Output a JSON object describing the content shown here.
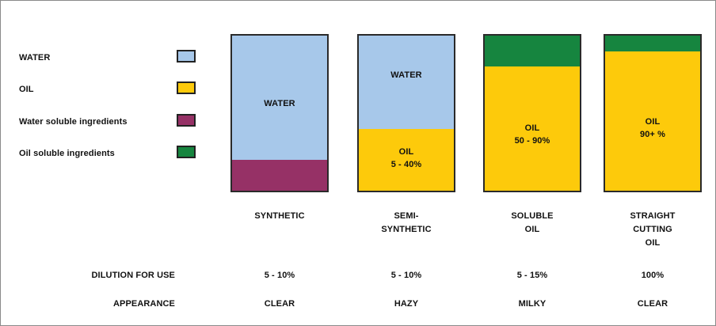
{
  "colors": {
    "water": "#a7c8ea",
    "oil": "#fdca0b",
    "water_soluble": "#963166",
    "oil_soluble": "#16853f"
  },
  "legend": [
    {
      "label": "WATER",
      "color_key": "water"
    },
    {
      "label": "OIL",
      "color_key": "oil"
    },
    {
      "label": "Water soluble ingredients",
      "color_key": "water_soluble"
    },
    {
      "label": "Oil soluble ingredients",
      "color_key": "oil_soluble"
    }
  ],
  "columns": [
    {
      "name_lines": [
        "SYNTHETIC"
      ],
      "dilution": "5 - 10%",
      "appearance": "CLEAR",
      "segments": [
        {
          "color_key": "water",
          "fraction": 0.8,
          "label": "WATER",
          "sublabel": ""
        },
        {
          "color_key": "water_soluble",
          "fraction": 0.2,
          "label": "",
          "sublabel": ""
        }
      ]
    },
    {
      "name_lines": [
        "SEMI-",
        "SYNTHETIC"
      ],
      "dilution": "5 - 10%",
      "appearance": "HAZY",
      "segments": [
        {
          "color_key": "water",
          "fraction": 0.6,
          "label": "WATER",
          "sublabel": ""
        },
        {
          "color_key": "oil",
          "fraction": 0.4,
          "label": "OIL",
          "sublabel": "5 - 40%"
        }
      ]
    },
    {
      "name_lines": [
        "SOLUBLE",
        "OIL"
      ],
      "dilution": "5 - 15%",
      "appearance": "MILKY",
      "segments": [
        {
          "color_key": "oil_soluble",
          "fraction": 0.2,
          "label": "",
          "sublabel": ""
        },
        {
          "color_key": "oil",
          "fraction": 0.8,
          "label": "OIL",
          "sublabel": "50 - 90%"
        }
      ]
    },
    {
      "name_lines": [
        "STRAIGHT",
        "CUTTING",
        "OIL"
      ],
      "dilution": "100%",
      "appearance": "CLEAR",
      "segments": [
        {
          "color_key": "oil_soluble",
          "fraction": 0.1,
          "label": "",
          "sublabel": ""
        },
        {
          "color_key": "oil",
          "fraction": 0.9,
          "label": "OIL",
          "sublabel": "90+ %"
        }
      ]
    }
  ],
  "rows": {
    "dilution_label": "DILUTION FOR USE",
    "appearance_label": "APPEARANCE"
  }
}
